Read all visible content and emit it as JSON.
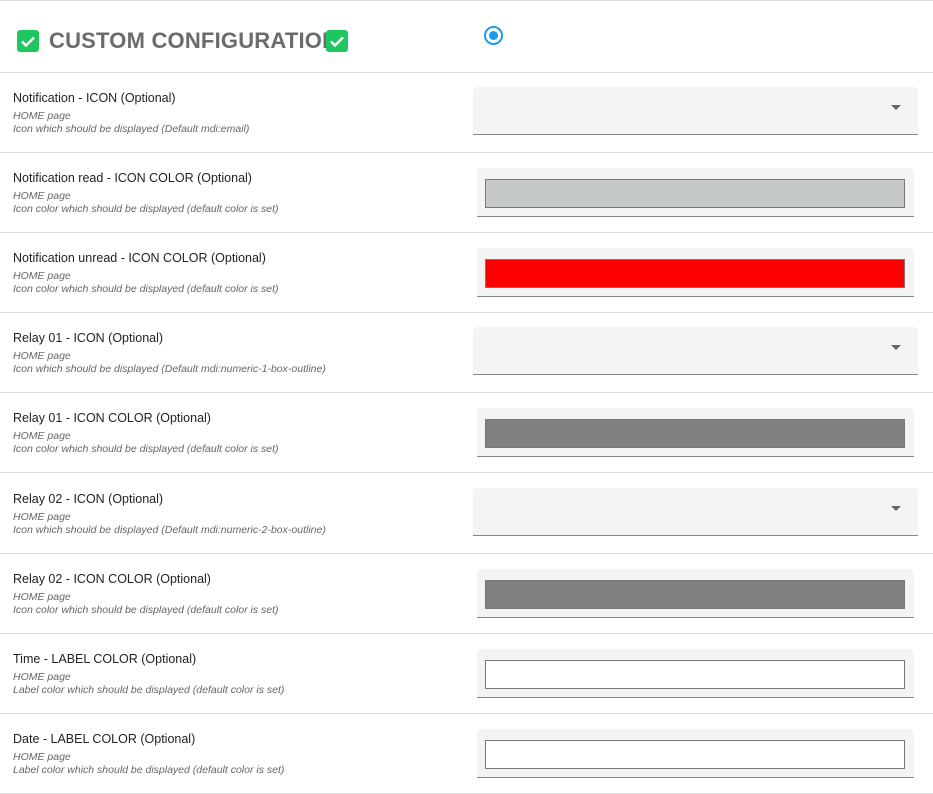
{
  "header": {
    "title": "CUSTOM CONFIGURATION",
    "radio_selected": true,
    "check_color": "#1fc65f"
  },
  "rows": [
    {
      "label": "Notification - ICON (Optional)",
      "page": "HOME page",
      "desc": "Icon which should be displayed (Default mdi:email)",
      "type": "select",
      "value": ""
    },
    {
      "label": "Notification read - ICON COLOR (Optional)",
      "page": "HOME page",
      "desc": "Icon color which should be displayed (default color is set)",
      "type": "color",
      "value": "#c5cac6"
    },
    {
      "label": "Notification unread - ICON COLOR (Optional)",
      "page": "HOME page",
      "desc": "Icon color which should be displayed (default color is set)",
      "type": "color",
      "value": "#ff0000"
    },
    {
      "label": "Relay 01 - ICON (Optional)",
      "page": "HOME page",
      "desc": "Icon which should be displayed (Default mdi:numeric-1-box-outline)",
      "type": "select",
      "value": ""
    },
    {
      "label": "Relay 01 - ICON COLOR (Optional)",
      "page": "HOME page",
      "desc": "Icon color which should be displayed (default color is set)",
      "type": "color",
      "value": "#808080"
    },
    {
      "label": "Relay 02 - ICON (Optional)",
      "page": "HOME page",
      "desc": "Icon which should be displayed (Default mdi:numeric-2-box-outline)",
      "type": "select",
      "value": ""
    },
    {
      "label": "Relay 02 - ICON COLOR (Optional)",
      "page": "HOME page",
      "desc": "Icon color which should be displayed (default color is set)",
      "type": "color",
      "value": "#808080"
    },
    {
      "label": "Time - LABEL COLOR (Optional)",
      "page": "HOME page",
      "desc": "Label color which should be displayed (default color is set)",
      "type": "color",
      "value": "#ffffff"
    },
    {
      "label": "Date - LABEL COLOR (Optional)",
      "page": "HOME page",
      "desc": "Label color which should be displayed (default color is set)",
      "type": "color",
      "value": "#ffffff"
    }
  ]
}
